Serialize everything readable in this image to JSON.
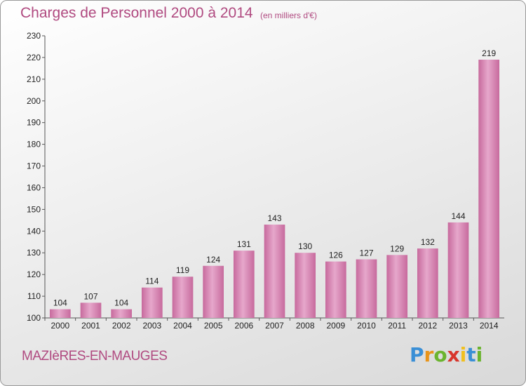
{
  "header": {
    "title": "Charges de Personnel 2000 à 2014",
    "subtitle": "(en milliers d'€)"
  },
  "footer": {
    "commune": "MAZIèRES-EN-MAUGES",
    "logo": {
      "letters": [
        "P",
        "r",
        "o",
        "x",
        "i",
        "t",
        "i"
      ],
      "colors": [
        "#3a8fd6",
        "#e8941a",
        "#6bb42f",
        "#d8352b",
        "#f0c020",
        "#3a8fd6",
        "#6bb42f"
      ]
    }
  },
  "chart_data": {
    "type": "bar",
    "categories": [
      "2000",
      "2001",
      "2002",
      "2003",
      "2004",
      "2005",
      "2006",
      "2007",
      "2008",
      "2009",
      "2010",
      "2011",
      "2012",
      "2013",
      "2014"
    ],
    "values": [
      104,
      107,
      104,
      114,
      119,
      124,
      131,
      143,
      130,
      126,
      127,
      129,
      132,
      144,
      219
    ],
    "title": "Charges de Personnel 2000 à 2014",
    "subtitle": "(en milliers d'€)",
    "xlabel": "",
    "ylabel": "",
    "ylim": [
      100,
      230
    ],
    "yticks": [
      100,
      110,
      120,
      130,
      140,
      150,
      160,
      170,
      180,
      190,
      200,
      210,
      220,
      230
    ],
    "grid": false,
    "bar_color": "#d98cb6",
    "bar_color_dark": "#c96fa0"
  }
}
